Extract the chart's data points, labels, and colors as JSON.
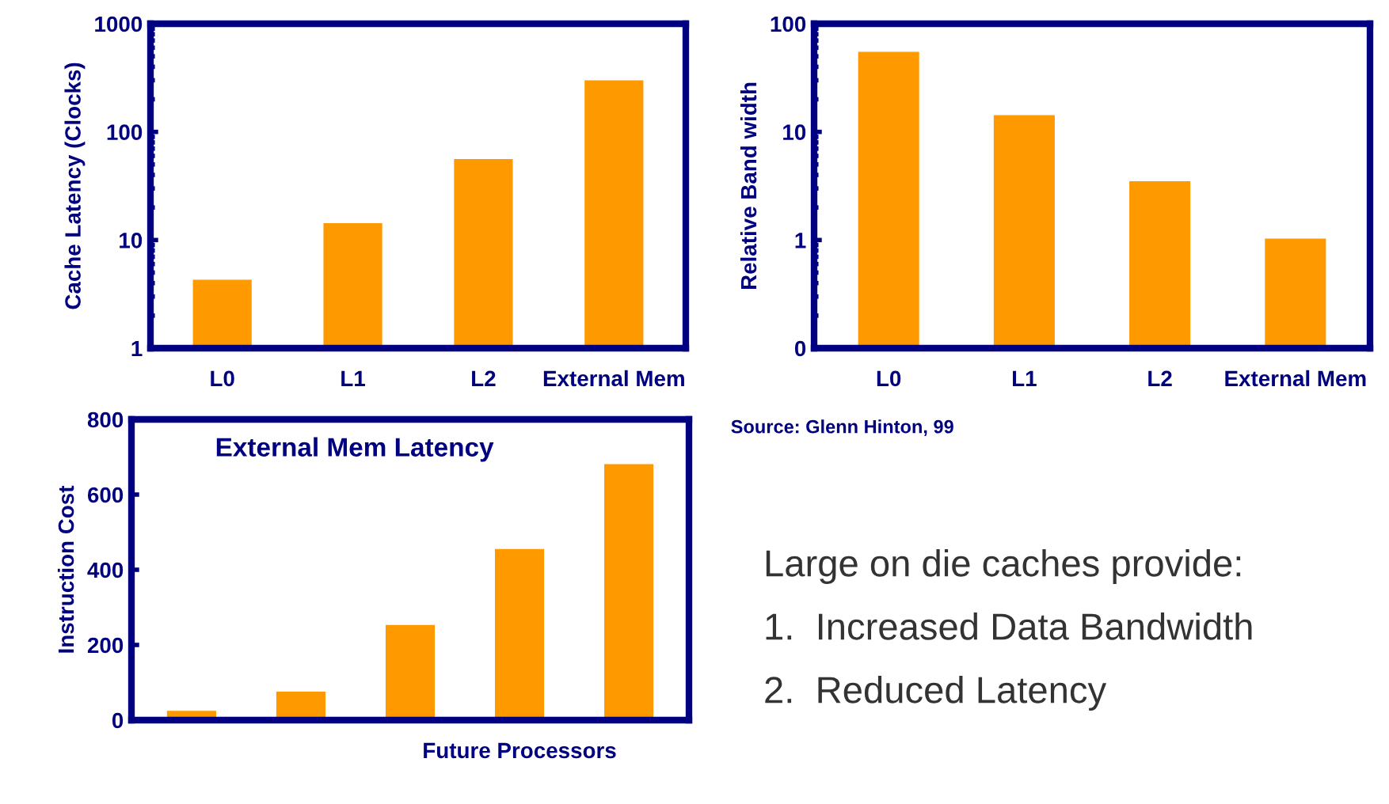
{
  "chart_data": [
    {
      "type": "bar",
      "ylabel": "Cache Latency (Clocks)",
      "categories": [
        "L0",
        "L1",
        "L2",
        "External Mem"
      ],
      "values": [
        4.3,
        14.3,
        56,
        300
      ],
      "color": "#ff9900",
      "log": true,
      "ylim": [
        1,
        1000
      ],
      "yticks": [
        1,
        10,
        100,
        1000
      ],
      "grid": false,
      "legend": false
    },
    {
      "type": "bar",
      "ylabel": "Relative Band width",
      "categories": [
        "L0",
        "L1",
        "L2",
        "External Mem"
      ],
      "values": [
        55,
        14.3,
        3.5,
        1.03
      ],
      "color": "#ff9900",
      "log": true,
      "ylim": [
        0.1,
        100
      ],
      "yticks": [
        {
          "value": 0.1,
          "label": "0"
        },
        1,
        10,
        100
      ],
      "grid": false,
      "legend": false,
      "annotations": [
        "Source: Glenn Hinton, 99"
      ]
    },
    {
      "type": "bar",
      "title": "External Mem Latency",
      "ylabel": "Instruction Cost",
      "categories": [
        null,
        null,
        null,
        "Future Processors",
        null
      ],
      "values": [
        25,
        76,
        253,
        455,
        681
      ],
      "color": "#ff9900",
      "ylim": [
        0,
        800
      ],
      "yticks": [
        0,
        200,
        400,
        600,
        800
      ],
      "grid": false,
      "legend": false
    },
    {
      "type": "other",
      "title": "Large on die caches provide:",
      "annotations": [
        "1.  Increased Data Bandwidth",
        "2.  Reduced Latency"
      ]
    }
  ]
}
